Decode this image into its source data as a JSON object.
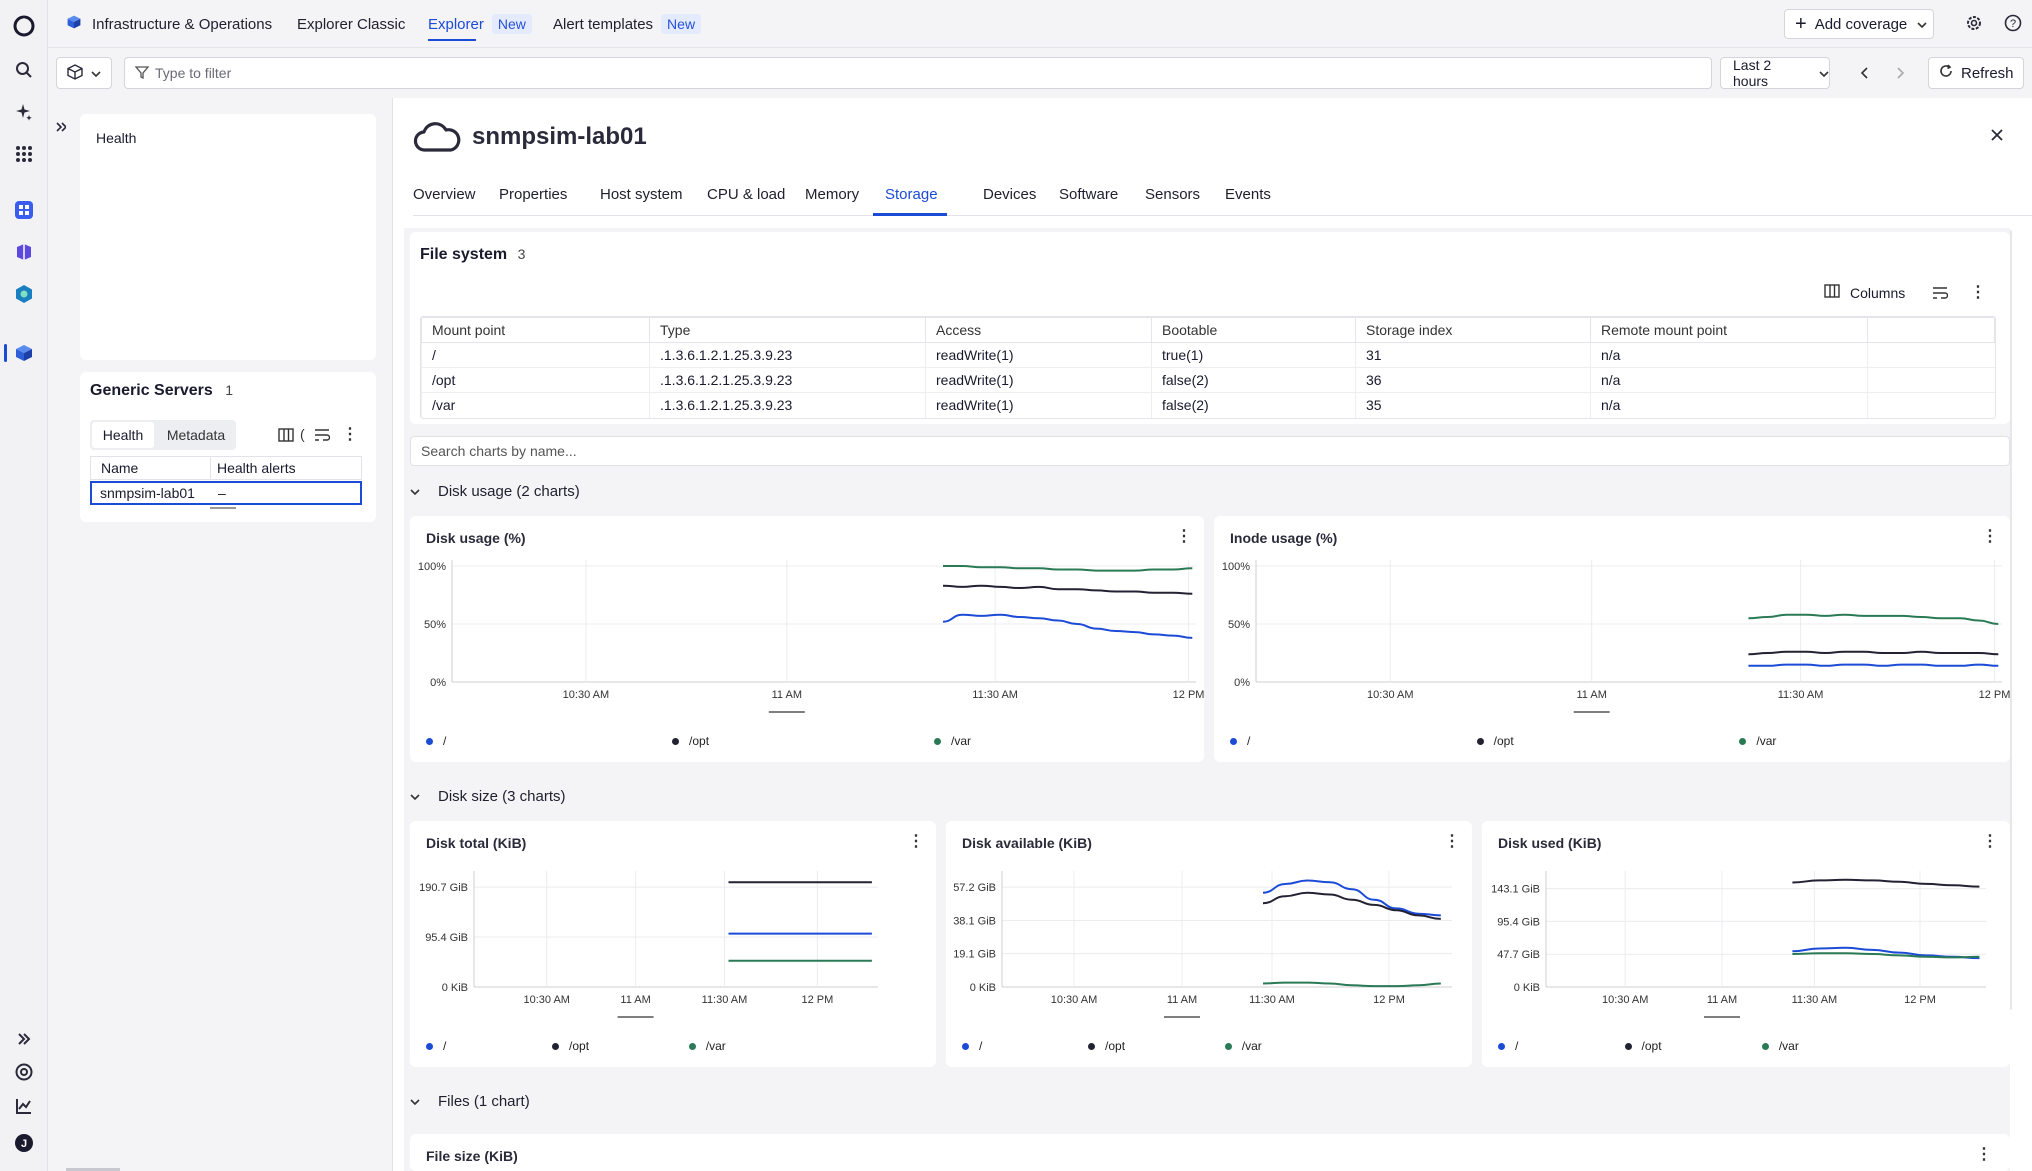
{
  "topnav": {
    "app_title": "Infrastructure & Operations",
    "tabs": [
      {
        "label": "Explorer Classic",
        "badge": ""
      },
      {
        "label": "Explorer",
        "badge": "New"
      },
      {
        "label": "Alert templates",
        "badge": "New"
      }
    ],
    "add_coverage": "Add coverage"
  },
  "filterbar": {
    "placeholder": "Type to filter",
    "timeframe": "Last 2 hours",
    "refresh": "Refresh"
  },
  "left": {
    "health_title": "Health",
    "group_title": "Generic Servers",
    "group_count": "1",
    "tabs": [
      "Health",
      "Metadata"
    ],
    "columns": [
      "Name",
      "Health alerts"
    ],
    "rows": [
      {
        "name": "snmpsim-lab01",
        "alerts": "–"
      }
    ]
  },
  "entity": {
    "name": "snmpsim-lab01",
    "tabs": [
      "Overview",
      "Properties",
      "Host system",
      "CPU & load",
      "Memory",
      "Storage",
      "Devices",
      "Software",
      "Sensors",
      "Events"
    ],
    "active_tab": "Storage"
  },
  "filesystem": {
    "title": "File system",
    "count": "3",
    "columns_button": "Columns",
    "headers": [
      "Mount point",
      "Type",
      "Access",
      "Bootable",
      "Storage index",
      "Remote mount point"
    ],
    "rows": [
      [
        "/",
        ".1.3.6.1.2.1.25.3.9.23",
        "readWrite(1)",
        "true(1)",
        "31",
        "n/a"
      ],
      [
        "/opt",
        ".1.3.6.1.2.1.25.3.9.23",
        "readWrite(1)",
        "false(2)",
        "36",
        "n/a"
      ],
      [
        "/var",
        ".1.3.6.1.2.1.25.3.9.23",
        "readWrite(1)",
        "false(2)",
        "35",
        "n/a"
      ]
    ]
  },
  "search_charts": {
    "placeholder": "Search charts by name..."
  },
  "sections": {
    "disk_usage": "Disk usage (2 charts)",
    "disk_size": "Disk size (3 charts)",
    "files": "Files (1 chart)"
  },
  "colors": {
    "root": "#1c4bd6",
    "opt": "#222233",
    "var": "#2a7a55",
    "accent": "#1c4bd6"
  },
  "legend": [
    "/",
    "/opt",
    "/var"
  ],
  "chart_data": [
    {
      "type": "line",
      "title": "Disk usage (%)",
      "x_ticks": [
        "10:30 AM",
        "11 AM",
        "11:30 AM",
        "12 PM"
      ],
      "y_ticks": [
        "100%",
        "50%",
        "0%"
      ],
      "ylim": [
        0,
        100
      ],
      "series": [
        {
          "name": "/",
          "values": [
            52,
            58,
            57,
            58,
            56,
            55,
            53,
            50,
            46,
            44,
            43,
            41,
            40,
            38
          ]
        },
        {
          "name": "/opt",
          "values": [
            83,
            82,
            83,
            82,
            81,
            82,
            80,
            80,
            79,
            78,
            78,
            77,
            77,
            76
          ]
        },
        {
          "name": "/var",
          "values": [
            100,
            100,
            99,
            99,
            98,
            98,
            97,
            97,
            96,
            96,
            96,
            97,
            97,
            98
          ]
        }
      ]
    },
    {
      "type": "line",
      "title": "Inode usage (%)",
      "x_ticks": [
        "10:30 AM",
        "11 AM",
        "11:30 AM",
        "12 PM"
      ],
      "y_ticks": [
        "100%",
        "50%",
        "0%"
      ],
      "ylim": [
        0,
        100
      ],
      "series": [
        {
          "name": "/",
          "values": [
            14,
            14,
            15,
            15,
            14,
            15,
            15,
            14,
            15,
            15,
            14,
            14,
            15,
            14
          ]
        },
        {
          "name": "/opt",
          "values": [
            24,
            25,
            26,
            26,
            25,
            26,
            26,
            25,
            25,
            26,
            25,
            25,
            25,
            24
          ]
        },
        {
          "name": "/var",
          "values": [
            55,
            56,
            58,
            58,
            57,
            58,
            57,
            57,
            57,
            56,
            55,
            55,
            53,
            50
          ]
        }
      ]
    },
    {
      "type": "line",
      "title": "Disk total (KiB)",
      "x_ticks": [
        "10:30 AM",
        "11 AM",
        "11:30 AM",
        "12 PM"
      ],
      "y_ticks": [
        "190.7 GiB",
        "95.4 GiB",
        "0 KiB"
      ],
      "ylim": [
        0,
        210
      ],
      "series": [
        {
          "name": "/",
          "values": [
            102,
            102,
            102,
            102,
            102,
            102
          ]
        },
        {
          "name": "/opt",
          "values": [
            200,
            200,
            200,
            200,
            200,
            200
          ]
        },
        {
          "name": "/var",
          "values": [
            50,
            50,
            50,
            50,
            50,
            50
          ]
        }
      ]
    },
    {
      "type": "line",
      "title": "Disk available (KiB)",
      "x_ticks": [
        "10:30 AM",
        "11 AM",
        "11:30 AM",
        "12 PM"
      ],
      "y_ticks": [
        "57.2 GiB",
        "38.1 GiB",
        "19.1 GiB",
        "0 KiB"
      ],
      "ylim": [
        0,
        63
      ],
      "series": [
        {
          "name": "/",
          "values": [
            54,
            59,
            61,
            60,
            56,
            50,
            45,
            42,
            41
          ]
        },
        {
          "name": "/opt",
          "values": [
            48,
            52,
            54,
            53,
            50,
            47,
            44,
            41,
            39
          ]
        },
        {
          "name": "/var",
          "values": [
            2,
            2.5,
            2.5,
            2,
            1,
            0.5,
            0.5,
            1,
            2
          ]
        }
      ]
    },
    {
      "type": "line",
      "title": "Disk used (KiB)",
      "x_ticks": [
        "10:30 AM",
        "11 AM",
        "11:30 AM",
        "12 PM"
      ],
      "y_ticks": [
        "143.1 GiB",
        "95.4 GiB",
        "47.7 GiB",
        "0 KiB"
      ],
      "ylim": [
        0,
        160
      ],
      "series": [
        {
          "name": "/",
          "values": [
            52,
            56,
            57,
            54,
            50,
            46,
            44,
            42
          ]
        },
        {
          "name": "/opt",
          "values": [
            152,
            155,
            156,
            155,
            153,
            150,
            148,
            146
          ]
        },
        {
          "name": "/var",
          "values": [
            48,
            49,
            49,
            48,
            46,
            44,
            43,
            44
          ]
        }
      ]
    }
  ],
  "files_chart": {
    "title": "File size (KiB)"
  }
}
